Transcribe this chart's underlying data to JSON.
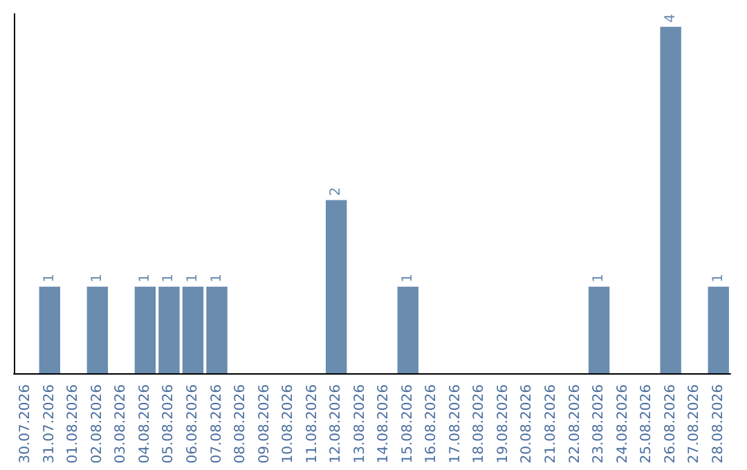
{
  "chart_data": {
    "type": "bar",
    "categories": [
      "30.07.2026",
      "31.07.2026",
      "01.08.2026",
      "02.08.2026",
      "03.08.2026",
      "04.08.2026",
      "05.08.2026",
      "06.08.2026",
      "07.08.2026",
      "08.08.2026",
      "09.08.2026",
      "10.08.2026",
      "11.08.2026",
      "12.08.2026",
      "13.08.2026",
      "14.08.2026",
      "15.08.2026",
      "16.08.2026",
      "17.08.2026",
      "18.08.2026",
      "19.08.2026",
      "20.08.2026",
      "21.08.2026",
      "22.08.2026",
      "23.08.2026",
      "24.08.2026",
      "25.08.2026",
      "26.08.2026",
      "27.08.2026",
      "28.08.2026"
    ],
    "values": [
      0,
      1,
      0,
      1,
      0,
      1,
      1,
      1,
      1,
      0,
      0,
      0,
      0,
      2,
      0,
      0,
      1,
      0,
      0,
      0,
      0,
      0,
      0,
      0,
      1,
      0,
      0,
      4,
      0,
      1
    ],
    "value_labels": [
      null,
      "1",
      null,
      "1",
      null,
      "1",
      "1",
      "1",
      "1",
      null,
      null,
      null,
      null,
      "2",
      null,
      null,
      "1",
      null,
      null,
      null,
      null,
      null,
      null,
      null,
      "1",
      null,
      null,
      "4",
      null,
      "1"
    ],
    "color": "#6a8caf",
    "ylim": [
      0,
      4.15
    ],
    "tick_labels": "x"
  }
}
